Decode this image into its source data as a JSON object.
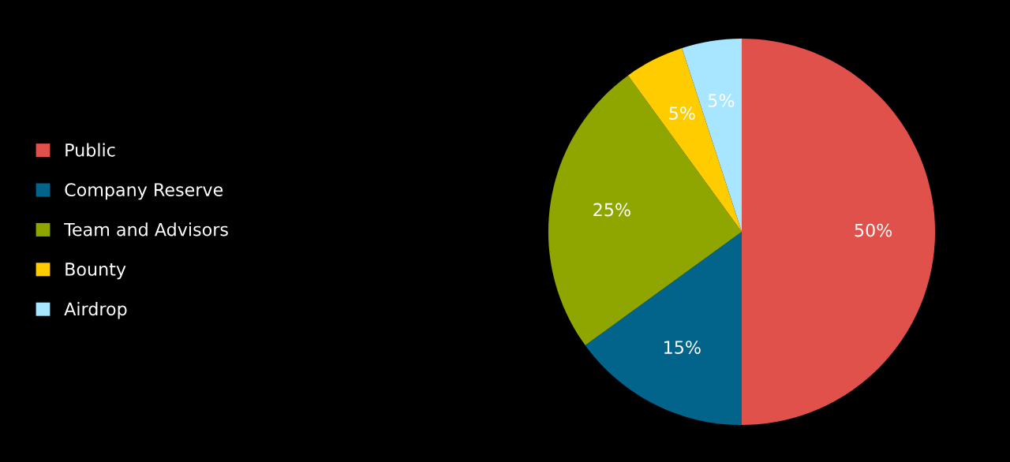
{
  "chart_data": {
    "type": "pie",
    "categories": [
      "Public",
      "Company Reserve",
      "Team and Advisors",
      "Bounty",
      "Airdrop"
    ],
    "values": [
      50,
      15,
      25,
      5,
      5
    ],
    "colors": [
      "#e0514b",
      "#03648b",
      "#8fa600",
      "#ffcc00",
      "#a8e6ff"
    ],
    "value_labels": [
      "50%",
      "15%",
      "25%",
      "5%",
      "5%"
    ],
    "legend": "left"
  }
}
